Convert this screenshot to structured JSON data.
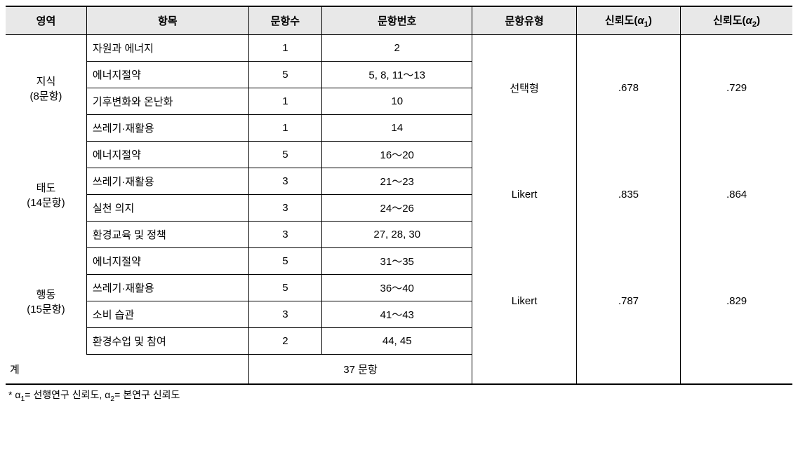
{
  "headers": {
    "area": "영역",
    "item": "항목",
    "count": "문항수",
    "number": "문항번호",
    "type": "문항유형",
    "rel1_prefix": "신뢰도(",
    "rel1_alpha": "α",
    "rel1_sub": "1",
    "rel1_suffix": ")",
    "rel2_prefix": "신뢰도(",
    "rel2_alpha": "α",
    "rel2_sub": "2",
    "rel2_suffix": ")"
  },
  "colwidths": {
    "area": "105px",
    "item": "210px",
    "count": "95px",
    "number": "195px",
    "type": "135px",
    "rel1": "135px",
    "rel2": "145px"
  },
  "groups": [
    {
      "area_name": "지식",
      "area_sub": "(8문항)",
      "type": "선택형",
      "rel1": ".678",
      "rel2": ".729",
      "rows": [
        {
          "item": "자원과 에너지",
          "count": "1",
          "number": "2"
        },
        {
          "item": "에너지절약",
          "count": "5",
          "number": "5, 8, 11～13"
        },
        {
          "item": "기후변화와 온난화",
          "count": "1",
          "number": "10"
        },
        {
          "item": "쓰레기·재활용",
          "count": "1",
          "number": "14"
        }
      ]
    },
    {
      "area_name": "태도",
      "area_sub": "(14문항)",
      "type": "Likert",
      "rel1": ".835",
      "rel2": ".864",
      "rows": [
        {
          "item": "에너지절약",
          "count": "5",
          "number": "16～20"
        },
        {
          "item": "쓰레기·재활용",
          "count": "3",
          "number": "21～23"
        },
        {
          "item": "실천 의지",
          "count": "3",
          "number": "24～26"
        },
        {
          "item": "환경교육 및 정책",
          "count": "3",
          "number": "27, 28, 30"
        }
      ]
    },
    {
      "area_name": "행동",
      "area_sub": "(15문항)",
      "type": "Likert",
      "rel1": ".787",
      "rel2": ".829",
      "rows": [
        {
          "item": "에너지절약",
          "count": "5",
          "number": "31～35"
        },
        {
          "item": "쓰레기·재활용",
          "count": "5",
          "number": "36～40"
        },
        {
          "item": "소비 습관",
          "count": "3",
          "number": "41～43"
        },
        {
          "item": "환경수업 및 참여",
          "count": "2",
          "number": "44, 45"
        }
      ]
    }
  ],
  "total": {
    "label": "계",
    "value": "37 문항"
  },
  "footnote": {
    "star": "* ",
    "a1": "α",
    "s1": "1",
    "eq1": "= 선행연구 신뢰도, ",
    "a2": "α",
    "s2": "2",
    "eq2": "= 본연구 신뢰도"
  }
}
